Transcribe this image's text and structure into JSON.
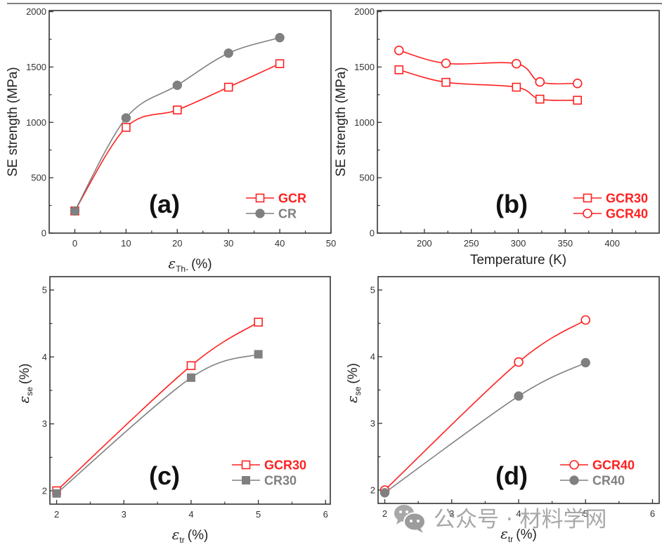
{
  "colors": {
    "red": "#ff2020",
    "gray": "#808080",
    "frame": "#333333"
  },
  "watermark": {
    "icon": "wechat-icon",
    "text": "公众号 · 材料学网"
  },
  "chart_data": [
    {
      "id": "a",
      "type": "line",
      "panel_label": "(a)",
      "title": "",
      "xlabel": "ε_Th- (%)",
      "xlabel_symbol": "ε",
      "xlabel_sub": "Th-",
      "xlabel_unit": "(%)",
      "ylabel": "SE strength (MPa)",
      "xlim": [
        -5,
        50
      ],
      "ylim": [
        0,
        2010
      ],
      "xticks": [
        0,
        10,
        20,
        30,
        40,
        50
      ],
      "xminor": [
        5,
        15,
        25,
        35,
        45
      ],
      "yticks": [
        0,
        500,
        1000,
        1500,
        2000
      ],
      "yminor": [
        250,
        750,
        1250,
        1750
      ],
      "grid": false,
      "legend_position": "bottom-right",
      "series": [
        {
          "name": "GCR",
          "color": "#ff2020",
          "marker": "square-open",
          "smooth": true,
          "x": [
            0,
            10,
            20,
            30,
            40
          ],
          "y": [
            200,
            955,
            1112,
            1318,
            1530
          ]
        },
        {
          "name": "CR",
          "color": "#808080",
          "marker": "circle-filled",
          "smooth": true,
          "x": [
            0,
            10,
            20,
            30,
            40
          ],
          "y": [
            200,
            1040,
            1335,
            1625,
            1765
          ]
        }
      ]
    },
    {
      "id": "b",
      "type": "line",
      "panel_label": "(b)",
      "title": "",
      "xlabel": "Temperature (K)",
      "ylabel": "SE strength (MPa)",
      "xlim": [
        150,
        450
      ],
      "ylim": [
        0,
        2010
      ],
      "xticks": [
        200,
        250,
        300,
        350,
        400
      ],
      "xminor": [
        175,
        225,
        275,
        325,
        375,
        425
      ],
      "yticks": [
        0,
        500,
        1000,
        1500,
        2000
      ],
      "yminor": [
        250,
        750,
        1250,
        1750
      ],
      "grid": false,
      "legend_position": "bottom-right",
      "series": [
        {
          "name": "GCR30",
          "color": "#ff2020",
          "marker": "square-open",
          "smooth": true,
          "x": [
            173,
            223,
            298,
            323,
            363
          ],
          "y": [
            1475,
            1362,
            1318,
            1210,
            1200
          ]
        },
        {
          "name": "GCR40",
          "color": "#ff2020",
          "marker": "circle-open",
          "smooth": true,
          "x": [
            173,
            223,
            298,
            323,
            363
          ],
          "y": [
            1650,
            1533,
            1530,
            1365,
            1352
          ]
        }
      ]
    },
    {
      "id": "c",
      "type": "line",
      "panel_label": "(c)",
      "title": "",
      "xlabel": "ε_tr (%)",
      "xlabel_symbol": "ε",
      "xlabel_sub": "tr",
      "xlabel_unit": "(%)",
      "ylabel": "ε_se (%)",
      "ylabel_symbol": "ε",
      "ylabel_sub": "se",
      "ylabel_unit": "(%)",
      "xlim": [
        1.9,
        6.07
      ],
      "ylim": [
        1.8,
        5.2
      ],
      "xticks": [
        2,
        3,
        4,
        5,
        6
      ],
      "xminor": [
        2.5,
        3.5,
        4.5,
        5.5
      ],
      "yticks": [
        2,
        3,
        4,
        5
      ],
      "yminor": [
        2.5,
        3.5,
        4.5
      ],
      "grid": false,
      "legend_position": "bottom-right",
      "series": [
        {
          "name": "GCR30",
          "color": "#ff2020",
          "marker": "square-open",
          "smooth": true,
          "x": [
            2,
            4,
            5
          ],
          "y": [
            2.0,
            3.87,
            4.52
          ]
        },
        {
          "name": "CR30",
          "color": "#808080",
          "marker": "square-filled",
          "smooth": true,
          "x": [
            2,
            4,
            5
          ],
          "y": [
            1.96,
            3.69,
            4.04
          ]
        }
      ]
    },
    {
      "id": "d",
      "type": "line",
      "panel_label": "(d)",
      "title": "",
      "xlabel": "ε_tr (%)",
      "xlabel_symbol": "ε",
      "xlabel_sub": "tr",
      "xlabel_unit": "(%)",
      "ylabel": "ε_se (%)",
      "ylabel_symbol": "ε",
      "ylabel_sub": "se",
      "ylabel_unit": "(%)",
      "xlim": [
        1.9,
        6.1
      ],
      "ylim": [
        1.8,
        5.2
      ],
      "xticks": [
        2,
        3,
        4,
        5,
        6
      ],
      "xminor": [
        2.5,
        3.5,
        4.5,
        5.5
      ],
      "yticks": [
        2,
        3,
        4,
        5
      ],
      "yminor": [
        2.5,
        3.5,
        4.5
      ],
      "grid": false,
      "legend_position": "bottom-right",
      "series": [
        {
          "name": "GCR40",
          "color": "#ff2020",
          "marker": "circle-open",
          "smooth": true,
          "x": [
            2,
            4,
            5
          ],
          "y": [
            2.0,
            3.92,
            4.55
          ]
        },
        {
          "name": "CR40",
          "color": "#808080",
          "marker": "circle-filled",
          "smooth": true,
          "x": [
            2,
            4,
            5
          ],
          "y": [
            1.96,
            3.41,
            3.91
          ]
        }
      ]
    }
  ]
}
